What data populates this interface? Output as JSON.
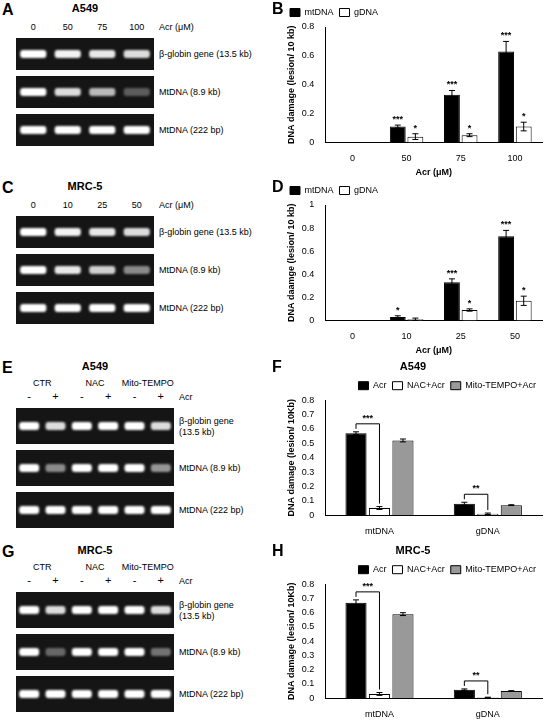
{
  "chart_data": [
    {
      "type": "bar",
      "panel": "B",
      "x_label": "Acr (μM)",
      "y_label": "DNA damage (lesion/ 10 kb)",
      "categories": [
        "0",
        "50",
        "75",
        "100"
      ],
      "series": [
        {
          "name": "mtDNA",
          "color": "#000000",
          "values": [
            0,
            0.11,
            0.33,
            0.63
          ],
          "errors": [
            0,
            0.01,
            0.03,
            0.07
          ],
          "annotations": [
            null,
            "***",
            "***",
            "***"
          ]
        },
        {
          "name": "gDNA",
          "color": "#ffffff",
          "values": [
            0,
            0.04,
            0.05,
            0.11
          ],
          "errors": [
            0,
            0.02,
            0.01,
            0.03
          ],
          "annotations": [
            null,
            "*",
            "*",
            "*"
          ]
        }
      ],
      "ylim": [
        0,
        0.8
      ],
      "yticks": [
        0,
        0.2,
        0.4,
        0.6,
        0.8
      ],
      "grid": false,
      "legend": "top-left"
    },
    {
      "type": "bar",
      "panel": "D",
      "x_label": "Acr (μM)",
      "y_label": "DNA daamge (lesion/ 10 kb)",
      "categories": [
        "0",
        "10",
        "25",
        "50"
      ],
      "series": [
        {
          "name": "mtDNA",
          "color": "#000000",
          "values": [
            0,
            0.03,
            0.33,
            0.73
          ],
          "errors": [
            0,
            0.01,
            0.03,
            0.05
          ],
          "annotations": [
            null,
            "*",
            "***",
            "***"
          ]
        },
        {
          "name": "gDNA",
          "color": "#ffffff",
          "values": [
            0,
            0.01,
            0.09,
            0.17
          ],
          "errors": [
            0,
            0.01,
            0.01,
            0.04
          ],
          "annotations": [
            null,
            null,
            "*",
            "*"
          ]
        }
      ],
      "ylim": [
        0,
        1
      ],
      "yticks": [
        0,
        0.2,
        0.4,
        0.6,
        0.8,
        1
      ],
      "grid": false,
      "legend": "top-left"
    },
    {
      "type": "bar",
      "panel": "F",
      "title": "A549",
      "y_label": "DNA damage (lesion/ 10Kb)",
      "categories": [
        "mtDNA",
        "gDNA"
      ],
      "series": [
        {
          "name": "Acr",
          "color": "#000000",
          "values": [
            0.57,
            0.08
          ],
          "errors": [
            0.01,
            0.01
          ]
        },
        {
          "name": "NAC+Acr",
          "color": "#ffffff",
          "values": [
            0.05,
            0.01
          ],
          "errors": [
            0.01,
            0.005
          ]
        },
        {
          "name": "Mito-TEMPO+Acr",
          "color": "#999999",
          "values": [
            0.52,
            0.07
          ],
          "errors": [
            0.01,
            0.003
          ]
        }
      ],
      "brackets": [
        {
          "category": "mtDNA",
          "from": "Acr",
          "to": "NAC+Acr",
          "label": "***"
        },
        {
          "category": "gDNA",
          "from": "Acr",
          "to": "NAC+Acr",
          "label": "**"
        }
      ],
      "ylim": [
        0,
        0.8
      ],
      "yticks": [
        0,
        0.1,
        0.2,
        0.3,
        0.4,
        0.5,
        0.6,
        0.7,
        0.8
      ],
      "grid": false,
      "legend": "top-right"
    },
    {
      "type": "bar",
      "panel": "H",
      "title": "MRC-5",
      "y_label": "DNA damage (lesion/ 10Kb)",
      "categories": [
        "mtDNA",
        "gDNA"
      ],
      "series": [
        {
          "name": "Acr",
          "color": "#000000",
          "values": [
            0.67,
            0.06
          ],
          "errors": [
            0.02,
            0.005
          ]
        },
        {
          "name": "NAC+Acr",
          "color": "#ffffff",
          "values": [
            0.03,
            0.005
          ],
          "errors": [
            0.01,
            0.002
          ]
        },
        {
          "name": "Mito-TEMPO+Acr",
          "color": "#999999",
          "values": [
            0.59,
            0.05
          ],
          "errors": [
            0.01,
            0.003
          ]
        }
      ],
      "brackets": [
        {
          "category": "mtDNA",
          "from": "Acr",
          "to": "NAC+Acr",
          "label": "***"
        },
        {
          "category": "gDNA",
          "from": "Acr",
          "to": "NAC+Acr",
          "label": "**"
        }
      ],
      "ylim": [
        0,
        0.8
      ],
      "yticks": [
        0,
        0.1,
        0.2,
        0.3,
        0.4,
        0.5,
        0.6,
        0.7,
        0.8
      ],
      "grid": false,
      "legend": "top-right"
    }
  ],
  "gels": [
    {
      "panel": "A",
      "title": "A549",
      "lane_header": "Acr (μM)",
      "lanes": [
        "0",
        "50",
        "75",
        "100"
      ],
      "rows": [
        {
          "label": [
            "β-globin gene (13.5 kb)"
          ],
          "intensity": [
            1,
            0.95,
            0.9,
            0.85
          ]
        },
        {
          "label": [
            "MtDNA (8.9 kb)"
          ],
          "intensity": [
            1,
            0.85,
            0.7,
            0.3
          ]
        },
        {
          "label": [
            "MtDNA (222 bp)"
          ],
          "intensity": [
            1,
            1,
            1,
            1
          ]
        }
      ]
    },
    {
      "panel": "C",
      "title": "MRC-5",
      "lane_header": "Acr (μM)",
      "lanes": [
        "0",
        "10",
        "25",
        "50"
      ],
      "rows": [
        {
          "label": [
            "β-globin gene (13.5 kb)"
          ],
          "intensity": [
            1,
            0.95,
            0.9,
            0.85
          ]
        },
        {
          "label": [
            "MtDNA (8.9 kb)"
          ],
          "intensity": [
            1,
            0.9,
            0.8,
            0.5
          ]
        },
        {
          "label": [
            "MtDNA (222 bp)"
          ],
          "intensity": [
            1,
            1,
            1,
            1
          ]
        }
      ]
    },
    {
      "panel": "E",
      "title": "A549",
      "lane_header": "Acr",
      "groups": [
        "CTR",
        "NAC",
        "Mito-TEMPO"
      ],
      "lanes": [
        "-",
        "+",
        "-",
        "+",
        "-",
        "+"
      ],
      "rows": [
        {
          "label": [
            "β-globin gene",
            "(13.5 kb)"
          ],
          "intensity": [
            1,
            0.85,
            1,
            1,
            1,
            0.85
          ]
        },
        {
          "label": [
            "MtDNA (8.9 kb)"
          ],
          "intensity": [
            1,
            0.5,
            1,
            1,
            1,
            0.55
          ]
        },
        {
          "label": [
            "MtDNA (222 bp)"
          ],
          "intensity": [
            1,
            1,
            1,
            1,
            1,
            1
          ]
        }
      ]
    },
    {
      "panel": "G",
      "title": "MRC-5",
      "lane_header": "Acr",
      "groups": [
        "CTR",
        "NAC",
        "Mito-TEMPO"
      ],
      "lanes": [
        "-",
        "+",
        "-",
        "+",
        "-",
        "+"
      ],
      "rows": [
        {
          "label": [
            "β-globin gene",
            "(13.5 kb)"
          ],
          "intensity": [
            1,
            0.85,
            1,
            1,
            1,
            0.85
          ]
        },
        {
          "label": [
            "MtDNA (8.9 kb)"
          ],
          "intensity": [
            1,
            0.35,
            1,
            1,
            1,
            0.4
          ]
        },
        {
          "label": [
            "MtDNA (222 bp)"
          ],
          "intensity": [
            1,
            1,
            1,
            1,
            1,
            1
          ]
        }
      ]
    }
  ]
}
